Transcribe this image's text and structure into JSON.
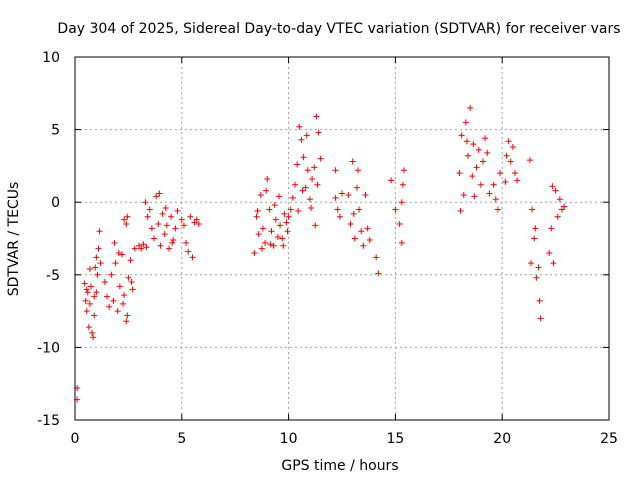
{
  "chart_data": {
    "type": "scatter",
    "title": "Day 304 of 2025, Sidereal Day-to-day VTEC variation (SDTVAR) for receiver vars",
    "xlabel": "GPS time / hours",
    "ylabel": "SDTVAR / TECUs",
    "xlim": [
      0,
      25
    ],
    "ylim": [
      -15,
      10
    ],
    "xticks": [
      0,
      5,
      10,
      15,
      20,
      25
    ],
    "yticks": [
      -15,
      -10,
      -5,
      0,
      5,
      10
    ],
    "grid": true,
    "marker": "+",
    "color": "#ff0000",
    "series": [
      {
        "name": "SDTVAR",
        "points": [
          [
            0.1,
            -12.8
          ],
          [
            0.1,
            -13.6
          ],
          [
            0.45,
            -5.6
          ],
          [
            0.5,
            -6.8
          ],
          [
            0.55,
            -7.5
          ],
          [
            0.6,
            -6.2
          ],
          [
            0.65,
            -8.6
          ],
          [
            0.7,
            -7.0
          ],
          [
            0.75,
            -5.8
          ],
          [
            0.8,
            -9.0
          ],
          [
            0.85,
            -9.3
          ],
          [
            0.9,
            -6.5
          ],
          [
            0.95,
            -4.5
          ],
          [
            1.0,
            -3.8
          ],
          [
            1.05,
            -5.0
          ],
          [
            1.1,
            -3.2
          ],
          [
            1.15,
            -2.0
          ],
          [
            1.2,
            -4.2
          ],
          [
            0.55,
            -6.0
          ],
          [
            0.7,
            -4.6
          ],
          [
            0.9,
            -7.8
          ],
          [
            1.0,
            -6.2
          ],
          [
            1.4,
            -5.5
          ],
          [
            1.5,
            -6.5
          ],
          [
            1.6,
            -7.2
          ],
          [
            1.7,
            -5.0
          ],
          [
            1.8,
            -6.8
          ],
          [
            1.9,
            -4.2
          ],
          [
            2.0,
            -7.5
          ],
          [
            2.1,
            -5.8
          ],
          [
            2.2,
            -3.6
          ],
          [
            2.3,
            -6.4
          ],
          [
            2.4,
            -8.2
          ],
          [
            2.5,
            -5.2
          ],
          [
            2.6,
            -4.0
          ],
          [
            2.7,
            -6.0
          ],
          [
            2.8,
            -3.2
          ],
          [
            1.85,
            -2.8
          ],
          [
            2.05,
            -3.5
          ],
          [
            2.25,
            -7.0
          ],
          [
            2.45,
            -7.8
          ],
          [
            2.65,
            -5.5
          ],
          [
            2.3,
            -1.2
          ],
          [
            2.4,
            -1.5
          ],
          [
            2.45,
            -1.0
          ],
          [
            3.0,
            -3.0
          ],
          [
            3.1,
            -3.2
          ],
          [
            3.2,
            -2.9
          ],
          [
            3.35,
            -3.1
          ],
          [
            3.3,
            0.0
          ],
          [
            3.4,
            -1.0
          ],
          [
            3.5,
            -0.5
          ],
          [
            3.6,
            -1.8
          ],
          [
            3.7,
            -2.5
          ],
          [
            3.8,
            0.4
          ],
          [
            3.9,
            -1.5
          ],
          [
            4.0,
            -3.0
          ],
          [
            4.1,
            -0.8
          ],
          [
            4.2,
            -2.2
          ],
          [
            4.3,
            -1.6
          ],
          [
            4.4,
            -3.2
          ],
          [
            4.5,
            -1.0
          ],
          [
            4.6,
            -2.6
          ],
          [
            4.7,
            -1.8
          ],
          [
            4.8,
            -0.6
          ],
          [
            3.95,
            0.6
          ],
          [
            4.25,
            -0.4
          ],
          [
            4.55,
            -2.8
          ],
          [
            5.0,
            -1.2
          ],
          [
            5.1,
            -1.6
          ],
          [
            5.2,
            -2.8
          ],
          [
            5.3,
            -3.4
          ],
          [
            5.4,
            -1.0
          ],
          [
            5.5,
            -3.8
          ],
          [
            5.6,
            -1.4
          ],
          [
            5.7,
            -1.2
          ],
          [
            5.8,
            -1.5
          ],
          [
            8.4,
            -3.5
          ],
          [
            8.5,
            -1.0
          ],
          [
            8.6,
            -2.2
          ],
          [
            8.7,
            0.5
          ],
          [
            8.8,
            -1.8
          ],
          [
            8.9,
            -2.8
          ],
          [
            9.0,
            1.6
          ],
          [
            9.1,
            -0.5
          ],
          [
            9.2,
            -2.0
          ],
          [
            9.3,
            -3.0
          ],
          [
            9.4,
            -1.2
          ],
          [
            9.5,
            -2.4
          ],
          [
            9.6,
            -1.6
          ],
          [
            9.7,
            -2.5
          ],
          [
            9.8,
            -0.8
          ],
          [
            9.9,
            -1.4
          ],
          [
            8.55,
            -0.6
          ],
          [
            8.75,
            -3.2
          ],
          [
            8.95,
            0.8
          ],
          [
            9.15,
            -2.9
          ],
          [
            9.35,
            -0.2
          ],
          [
            9.55,
            0.4
          ],
          [
            9.75,
            -3.0
          ],
          [
            9.95,
            -2.0
          ],
          [
            10.0,
            -1.0
          ],
          [
            10.1,
            -0.5
          ],
          [
            10.2,
            0.3
          ],
          [
            10.3,
            1.2
          ],
          [
            10.4,
            2.6
          ],
          [
            10.5,
            5.2
          ],
          [
            10.6,
            4.3
          ],
          [
            10.7,
            3.1
          ],
          [
            10.8,
            1.0
          ],
          [
            10.9,
            2.2
          ],
          [
            11.0,
            0.2
          ],
          [
            11.1,
            1.6
          ],
          [
            11.2,
            2.4
          ],
          [
            11.3,
            5.9
          ],
          [
            11.4,
            4.8
          ],
          [
            11.5,
            3.0
          ],
          [
            10.45,
            -0.6
          ],
          [
            10.65,
            0.8
          ],
          [
            10.85,
            4.6
          ],
          [
            11.05,
            -0.4
          ],
          [
            11.25,
            -1.6
          ],
          [
            11.35,
            1.2
          ],
          [
            12.2,
            0.3
          ],
          [
            12.3,
            -0.5
          ],
          [
            12.4,
            -1.0
          ],
          [
            12.5,
            0.6
          ],
          [
            12.2,
            2.2
          ],
          [
            12.8,
            0.5
          ],
          [
            12.9,
            -1.5
          ],
          [
            13.0,
            2.8
          ],
          [
            13.1,
            -2.5
          ],
          [
            13.2,
            1.0
          ],
          [
            13.3,
            -0.5
          ],
          [
            13.4,
            -2.0
          ],
          [
            13.5,
            -3.0
          ],
          [
            13.6,
            0.5
          ],
          [
            13.7,
            -1.8
          ],
          [
            13.8,
            -2.6
          ],
          [
            13.05,
            -0.8
          ],
          [
            13.25,
            2.2
          ],
          [
            14.1,
            -3.8
          ],
          [
            14.2,
            -4.9
          ],
          [
            14.8,
            1.5
          ],
          [
            15.0,
            -0.5
          ],
          [
            15.2,
            -1.5
          ],
          [
            15.3,
            -2.8
          ],
          [
            15.35,
            1.2
          ],
          [
            15.4,
            2.2
          ],
          [
            15.3,
            0.0
          ],
          [
            18.0,
            2.0
          ],
          [
            18.1,
            4.6
          ],
          [
            18.2,
            0.5
          ],
          [
            18.3,
            5.5
          ],
          [
            18.4,
            3.2
          ],
          [
            18.5,
            6.5
          ],
          [
            18.6,
            1.8
          ],
          [
            18.7,
            0.4
          ],
          [
            18.8,
            2.4
          ],
          [
            18.9,
            3.6
          ],
          [
            19.0,
            1.2
          ],
          [
            19.1,
            2.8
          ],
          [
            19.2,
            4.4
          ],
          [
            19.3,
            3.4
          ],
          [
            19.4,
            0.6
          ],
          [
            18.05,
            -0.6
          ],
          [
            18.35,
            4.2
          ],
          [
            18.65,
            4.0
          ],
          [
            19.6,
            1.2
          ],
          [
            19.7,
            0.2
          ],
          [
            19.8,
            -0.5
          ],
          [
            19.9,
            2.0
          ],
          [
            20.2,
            3.2
          ],
          [
            20.3,
            4.2
          ],
          [
            20.4,
            2.8
          ],
          [
            20.5,
            3.8
          ],
          [
            20.6,
            2.0
          ],
          [
            20.7,
            1.5
          ],
          [
            20.15,
            1.4
          ],
          [
            21.3,
            2.9
          ],
          [
            21.4,
            -0.5
          ],
          [
            21.5,
            -2.5
          ],
          [
            21.6,
            -5.2
          ],
          [
            21.7,
            -4.5
          ],
          [
            21.75,
            -6.8
          ],
          [
            21.8,
            -8.0
          ],
          [
            21.35,
            -4.2
          ],
          [
            21.55,
            -1.8
          ],
          [
            22.2,
            -3.5
          ],
          [
            22.3,
            -1.8
          ],
          [
            22.4,
            -4.2
          ],
          [
            22.5,
            0.8
          ],
          [
            22.6,
            -1.0
          ],
          [
            22.7,
            0.2
          ],
          [
            22.8,
            -0.5
          ],
          [
            22.9,
            -0.3
          ],
          [
            22.35,
            1.1
          ]
        ]
      }
    ]
  }
}
